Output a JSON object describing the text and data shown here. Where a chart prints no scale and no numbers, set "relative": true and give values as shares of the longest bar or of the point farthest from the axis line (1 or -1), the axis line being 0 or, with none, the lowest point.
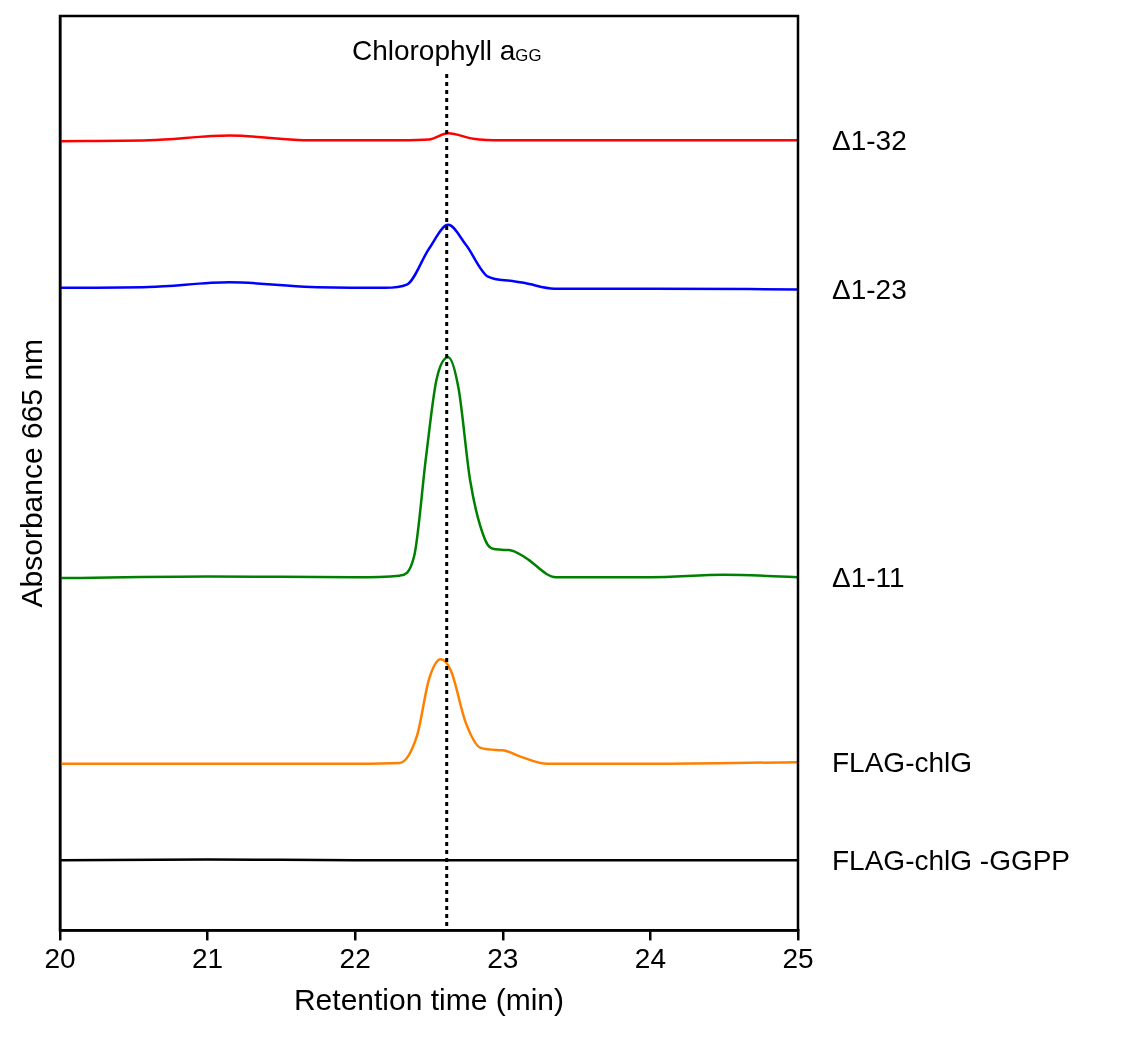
{
  "chart_data": {
    "type": "line",
    "xlabel": "Retention time (min)",
    "ylabel": "Absorbance 665 nm",
    "relative": true,
    "xlim": [
      20,
      25
    ],
    "xticks": [
      20,
      21,
      22,
      23,
      24,
      25
    ],
    "tick_labels": "x",
    "grid": false,
    "legend": false,
    "marker": "none",
    "line_style": "solid",
    "ref_lines": [
      {
        "axis": "x",
        "value": 22.62,
        "label": "Chlorophyll a$_{GG}$",
        "line_style": "dotted",
        "color": "#000000"
      }
    ],
    "series": [
      {
        "name": "Δ1-32",
        "color": "#ff0000",
        "x": [
          20,
          20.6,
          21.15,
          21.7,
          22.3,
          22.5,
          22.63,
          22.8,
          23,
          24,
          25
        ],
        "values": [
          0.99,
          0.991,
          0.997,
          0.991,
          0.991,
          0.992,
          1.0,
          0.993,
          0.991,
          0.991,
          0.991
        ]
      },
      {
        "name": "Δ1-23",
        "color": "#0000ff",
        "x": [
          20,
          20.6,
          21.15,
          21.7,
          22.2,
          22.35,
          22.5,
          22.63,
          22.75,
          22.9,
          23.05,
          23.15,
          23.35,
          24,
          25
        ],
        "values": [
          0.806,
          0.807,
          0.813,
          0.807,
          0.806,
          0.81,
          0.855,
          0.885,
          0.86,
          0.82,
          0.815,
          0.812,
          0.805,
          0.805,
          0.804
        ]
      },
      {
        "name": "Δ1-11",
        "color": "#008000",
        "x": [
          20,
          21,
          22,
          22.3,
          22.4,
          22.48,
          22.55,
          22.63,
          22.7,
          22.78,
          22.88,
          22.95,
          23.05,
          23.15,
          23.36,
          24,
          24.5,
          25
        ],
        "values": [
          0.442,
          0.444,
          0.443,
          0.445,
          0.47,
          0.594,
          0.69,
          0.719,
          0.68,
          0.563,
          0.49,
          0.478,
          0.477,
          0.468,
          0.443,
          0.443,
          0.446,
          0.443
        ]
      },
      {
        "name": "FLAG-chlG",
        "color": "#ff8000",
        "x": [
          20,
          21,
          22,
          22.3,
          22.42,
          22.5,
          22.58,
          22.65,
          22.75,
          22.85,
          23,
          23.12,
          23.3,
          24,
          25
        ],
        "values": [
          0.209,
          0.209,
          0.209,
          0.21,
          0.245,
          0.315,
          0.34,
          0.325,
          0.26,
          0.229,
          0.226,
          0.218,
          0.209,
          0.209,
          0.211
        ]
      },
      {
        "name": "FLAG-chlG -GGPP",
        "color": "#000000",
        "x": [
          20,
          21,
          22,
          23,
          24,
          25
        ],
        "values": [
          0.088,
          0.089,
          0.088,
          0.088,
          0.088,
          0.088
        ]
      }
    ]
  }
}
